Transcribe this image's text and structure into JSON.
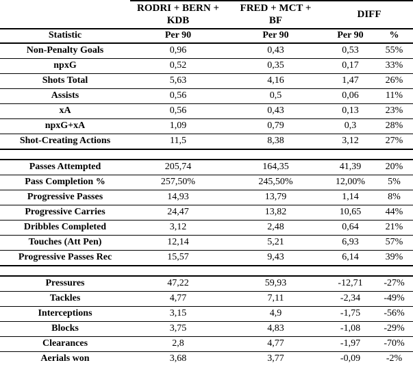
{
  "chart_data": {
    "type": "table",
    "group_headers": [
      {
        "label": "RODRI + BERN +\nKDB",
        "span": 1
      },
      {
        "label": "FRED + MCT +\nBF",
        "span": 1
      },
      {
        "label": "DIFF",
        "span": 2
      }
    ],
    "column_headers": [
      "Statistic",
      "Per 90",
      "Per 90",
      "Per 90",
      "%"
    ],
    "sections": [
      {
        "rows": [
          {
            "statistic": "Non-Penalty Goals",
            "values": [
              "0,96",
              "0,43",
              "0,53",
              "55%"
            ]
          },
          {
            "statistic": "npxG",
            "values": [
              "0,52",
              "0,35",
              "0,17",
              "33%"
            ]
          },
          {
            "statistic": "Shots Total",
            "values": [
              "5,63",
              "4,16",
              "1,47",
              "26%"
            ]
          },
          {
            "statistic": "Assists",
            "values": [
              "0,56",
              "0,5",
              "0,06",
              "11%"
            ]
          },
          {
            "statistic": "xA",
            "values": [
              "0,56",
              "0,43",
              "0,13",
              "23%"
            ]
          },
          {
            "statistic": "npxG+xA",
            "values": [
              "1,09",
              "0,79",
              "0,3",
              "28%"
            ]
          },
          {
            "statistic": "Shot-Creating Actions",
            "values": [
              "11,5",
              "8,38",
              "3,12",
              "27%"
            ]
          }
        ]
      },
      {
        "rows": [
          {
            "statistic": "Passes Attempted",
            "values": [
              "205,74",
              "164,35",
              "41,39",
              "20%"
            ]
          },
          {
            "statistic": "Pass Completion %",
            "values": [
              "257,50%",
              "245,50%",
              "12,00%",
              "5%"
            ]
          },
          {
            "statistic": "Progressive Passes",
            "values": [
              "14,93",
              "13,79",
              "1,14",
              "8%"
            ]
          },
          {
            "statistic": "Progressive Carries",
            "values": [
              "24,47",
              "13,82",
              "10,65",
              "44%"
            ]
          },
          {
            "statistic": "Dribbles Completed",
            "values": [
              "3,12",
              "2,48",
              "0,64",
              "21%"
            ]
          },
          {
            "statistic": "Touches (Att Pen)",
            "values": [
              "12,14",
              "5,21",
              "6,93",
              "57%"
            ]
          },
          {
            "statistic": "Progressive Passes Rec",
            "values": [
              "15,57",
              "9,43",
              "6,14",
              "39%"
            ]
          }
        ]
      },
      {
        "rows": [
          {
            "statistic": "Pressures",
            "values": [
              "47,22",
              "59,93",
              "-12,71",
              "-27%"
            ]
          },
          {
            "statistic": "Tackles",
            "values": [
              "4,77",
              "7,11",
              "-2,34",
              "-49%"
            ]
          },
          {
            "statistic": "Interceptions",
            "values": [
              "3,15",
              "4,9",
              "-1,75",
              "-56%"
            ]
          },
          {
            "statistic": "Blocks",
            "values": [
              "3,75",
              "4,83",
              "-1,08",
              "-29%"
            ]
          },
          {
            "statistic": "Clearances",
            "values": [
              "2,8",
              "4,77",
              "-1,97",
              "-70%"
            ]
          },
          {
            "statistic": "Aerials won",
            "values": [
              "3,68",
              "3,77",
              "-0,09",
              "-2%"
            ]
          }
        ]
      }
    ],
    "colors": {
      "text": "#000000",
      "background": "#ffffff",
      "border": "#000000"
    }
  }
}
